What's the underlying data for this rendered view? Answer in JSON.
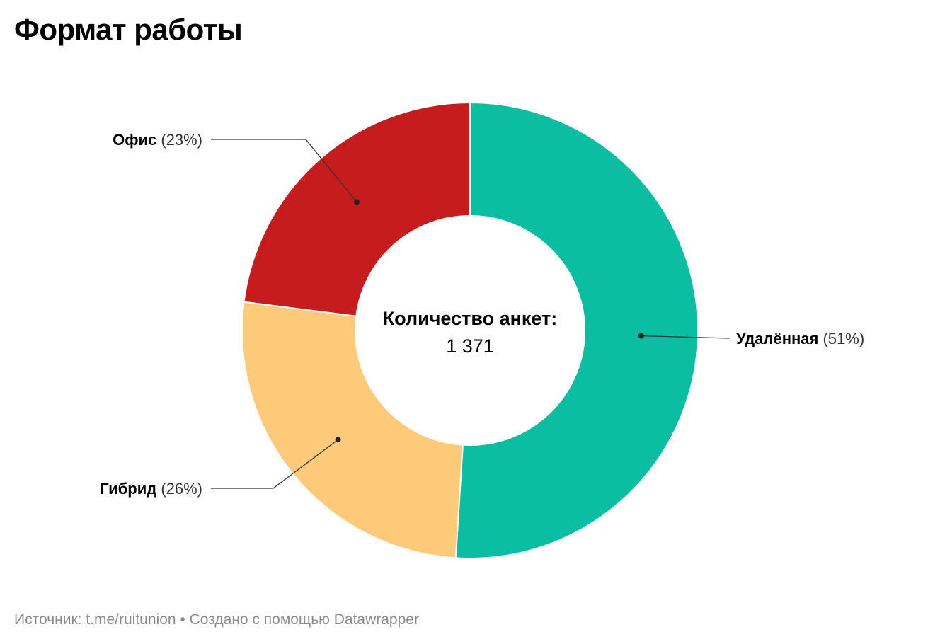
{
  "title": "Формат работы",
  "chart_data": {
    "type": "pie",
    "donut": true,
    "categories": [
      "Удалённая",
      "Гибрид",
      "Офис"
    ],
    "values": [
      51,
      26,
      23
    ],
    "value_labels": [
      "(51%)",
      "(26%)",
      "(23%)"
    ],
    "colors": [
      "#0bbea2",
      "#fdca79",
      "#c71c1e"
    ],
    "center_label": "Количество анкет:",
    "center_value": "1 371"
  },
  "footer": {
    "source_label": "Источник:",
    "source": "t.me/ruitunion",
    "separator": "•",
    "credit": "Создано с помощью Datawrapper"
  }
}
